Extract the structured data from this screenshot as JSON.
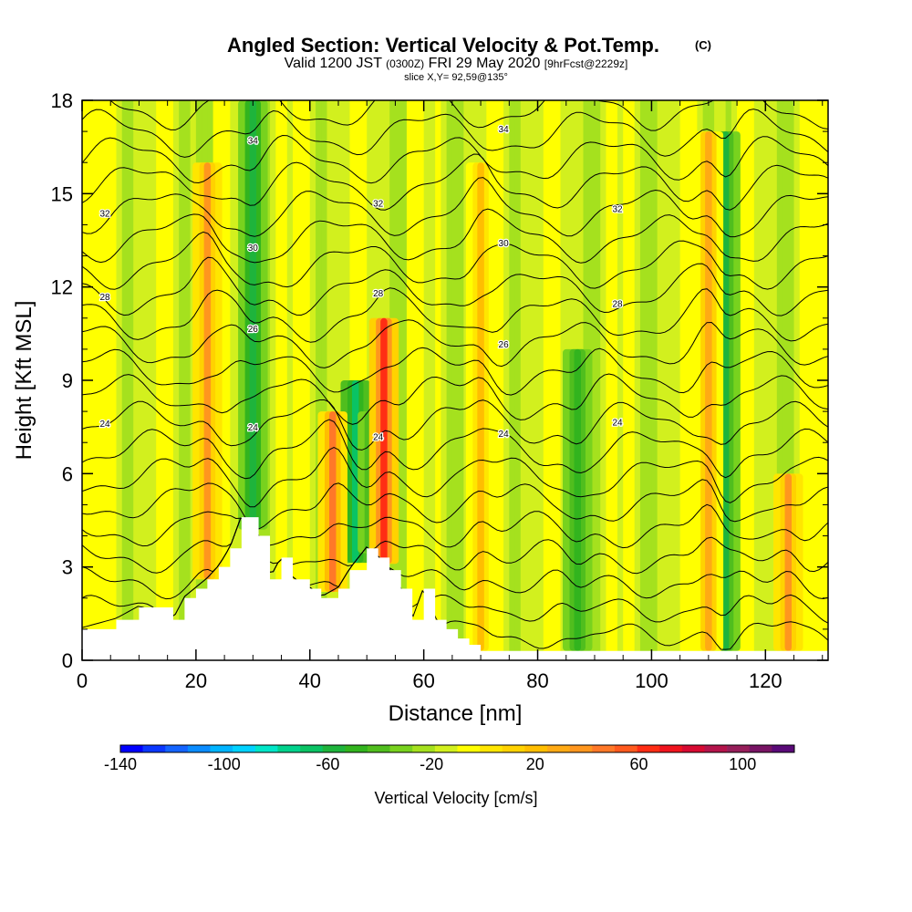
{
  "chart_data": {
    "type": "heatmap",
    "title": "Angled Section: Vertical Velocity & Pot.Temp.",
    "title_mark": "(C)",
    "subtitle_main": "Valid 1200 JST",
    "subtitle_zone": "(0300Z)",
    "subtitle_date": "FRI 29 May 2020",
    "subtitle_fcst": "[9hrFcst@2229z]",
    "subtitle2": "slice X,Y= 92,59@135°",
    "xlabel": "Distance [nm]",
    "ylabel": "Height [Kft MSL]",
    "xlim": [
      0,
      131
    ],
    "ylim": [
      0,
      18
    ],
    "x_ticks": [
      "0",
      "20",
      "40",
      "60",
      "80",
      "100",
      "120"
    ],
    "x_tick_values": [
      0,
      20,
      40,
      60,
      80,
      100,
      120
    ],
    "y_ticks": [
      "0",
      "3",
      "6",
      "9",
      "12",
      "15",
      "18"
    ],
    "y_tick_values": [
      0,
      3,
      6,
      9,
      12,
      15,
      18
    ],
    "colorbar": {
      "label": "Vertical Velocity [cm/s]",
      "range": [
        -140,
        120
      ],
      "step": 10,
      "tick_labels": [
        "-140",
        "-100",
        "-60",
        "-20",
        "20",
        "60",
        "100"
      ],
      "tick_values": [
        -140,
        -100,
        -60,
        -20,
        20,
        60,
        100
      ],
      "colors": [
        "#0000ff",
        "#0a37ff",
        "#1464ff",
        "#0a8cff",
        "#00b4ff",
        "#00d2ff",
        "#00e6c8",
        "#00d28c",
        "#0ac364",
        "#1eb43c",
        "#32b41e",
        "#50be1e",
        "#78d21e",
        "#a5e11e",
        "#d2f01e",
        "#ffff00",
        "#ffe600",
        "#ffd200",
        "#ffbe00",
        "#ffaa14",
        "#ff961e",
        "#ff7828",
        "#ff5a1e",
        "#ff2d14",
        "#f0141e",
        "#d70a32",
        "#b4144b",
        "#961e5a",
        "#781464",
        "#5a0a78"
      ]
    },
    "isentrope_labels": [
      "24",
      "26",
      "28",
      "30",
      "32",
      "34"
    ],
    "theta_profile": {
      "levels": [
        24,
        26,
        28,
        30,
        32,
        34
      ],
      "heights_kft": [
        7.4,
        10.4,
        11.6,
        13.3,
        14.6,
        16.9
      ]
    },
    "terrain_kft": {
      "x": [
        0,
        6,
        10,
        16,
        18,
        20,
        22,
        24,
        26,
        28,
        31,
        33,
        35,
        37,
        40,
        42,
        45,
        47,
        50,
        52,
        54,
        56,
        58,
        60,
        62,
        64,
        66,
        68,
        70,
        72,
        131
      ],
      "height": [
        1.0,
        1.3,
        1.7,
        1.3,
        2.0,
        2.3,
        2.6,
        3.0,
        3.6,
        4.6,
        4.0,
        2.6,
        3.3,
        2.6,
        2.3,
        2.0,
        2.3,
        2.9,
        3.6,
        3.3,
        2.9,
        2.3,
        1.3,
        2.3,
        1.3,
        1.0,
        0.7,
        0.5,
        0.3,
        0.3,
        0.3
      ]
    },
    "updrafts": [
      {
        "x": 22,
        "ztop": 16,
        "value": 60
      },
      {
        "x": 44,
        "ztop": 8,
        "value": 70
      },
      {
        "x": 53,
        "ztop": 11,
        "value": 95
      },
      {
        "x": 70,
        "ztop": 16,
        "value": 40
      },
      {
        "x": 110,
        "ztop": 17,
        "value": 50
      },
      {
        "x": 124,
        "ztop": 6,
        "value": 60
      }
    ],
    "downdrafts": [
      {
        "x": 30,
        "ztop": 18,
        "value": -50
      },
      {
        "x": 48,
        "ztop": 9,
        "value": -60
      },
      {
        "x": 51,
        "ztop": 8,
        "value": -45
      },
      {
        "x": 87,
        "ztop": 10,
        "value": -40
      },
      {
        "x": 113,
        "ztop": 17,
        "value": -45
      }
    ]
  }
}
